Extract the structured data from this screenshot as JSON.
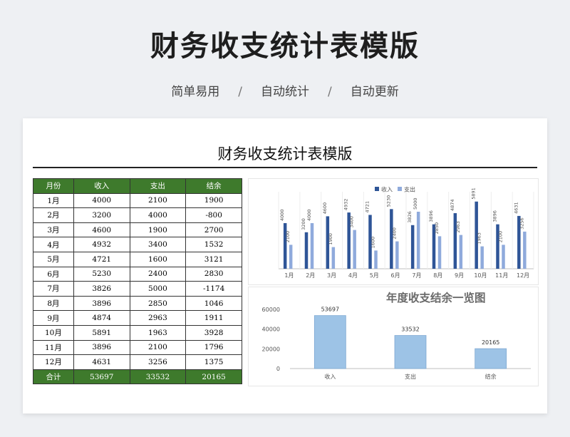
{
  "header": {
    "title": "财务收支统计表模版",
    "tags": [
      "简单易用",
      "自动统计",
      "自动更新"
    ],
    "separator": "/"
  },
  "sheet": {
    "title": "财务收支统计表模版",
    "table": {
      "headers": [
        "月份",
        "收入",
        "支出",
        "结余"
      ],
      "rows": [
        [
          "1月",
          "4000",
          "2100",
          "1900"
        ],
        [
          "2月",
          "3200",
          "4000",
          "-800"
        ],
        [
          "3月",
          "4600",
          "1900",
          "2700"
        ],
        [
          "4月",
          "4932",
          "3400",
          "1532"
        ],
        [
          "5月",
          "4721",
          "1600",
          "3121"
        ],
        [
          "6月",
          "5230",
          "2400",
          "2830"
        ],
        [
          "7月",
          "3826",
          "5000",
          "-1174"
        ],
        [
          "8月",
          "3896",
          "2850",
          "1046"
        ],
        [
          "9月",
          "4874",
          "2963",
          "1911"
        ],
        [
          "10月",
          "5891",
          "1963",
          "3928"
        ],
        [
          "11月",
          "3896",
          "2100",
          "1796"
        ],
        [
          "12月",
          "4631",
          "3256",
          "1375"
        ]
      ],
      "total": [
        "合计",
        "53697",
        "33532",
        "20165"
      ]
    }
  },
  "colors": {
    "header_green": "#3e7a2c",
    "income_bar": "#2f5597",
    "expense_bar": "#8faadc",
    "summary_bar": "#9dc3e6"
  },
  "chart_data": [
    {
      "type": "bar",
      "title": "",
      "categories": [
        "1月",
        "2月",
        "3月",
        "4月",
        "5月",
        "6月",
        "7月",
        "8月",
        "9月",
        "10月",
        "11月",
        "12月"
      ],
      "series": [
        {
          "name": "收入",
          "values": [
            4000,
            3200,
            4600,
            4932,
            4721,
            5230,
            3826,
            3896,
            4874,
            5891,
            3896,
            4631
          ]
        },
        {
          "name": "支出",
          "values": [
            2100,
            4000,
            1900,
            3400,
            1600,
            2400,
            5000,
            2850,
            2963,
            1963,
            2100,
            3256
          ]
        }
      ],
      "ylim": [
        0,
        6500
      ],
      "legend": "top",
      "data_labels": true,
      "grid": false
    },
    {
      "type": "bar",
      "title": "年度收支结余一览图",
      "categories": [
        "收入",
        "支出",
        "结余"
      ],
      "values": [
        53697,
        33532,
        20165
      ],
      "yticks": [
        "0",
        "20000",
        "40000",
        "60000"
      ],
      "ylim": [
        0,
        65000
      ],
      "data_labels": true,
      "grid": false
    }
  ]
}
